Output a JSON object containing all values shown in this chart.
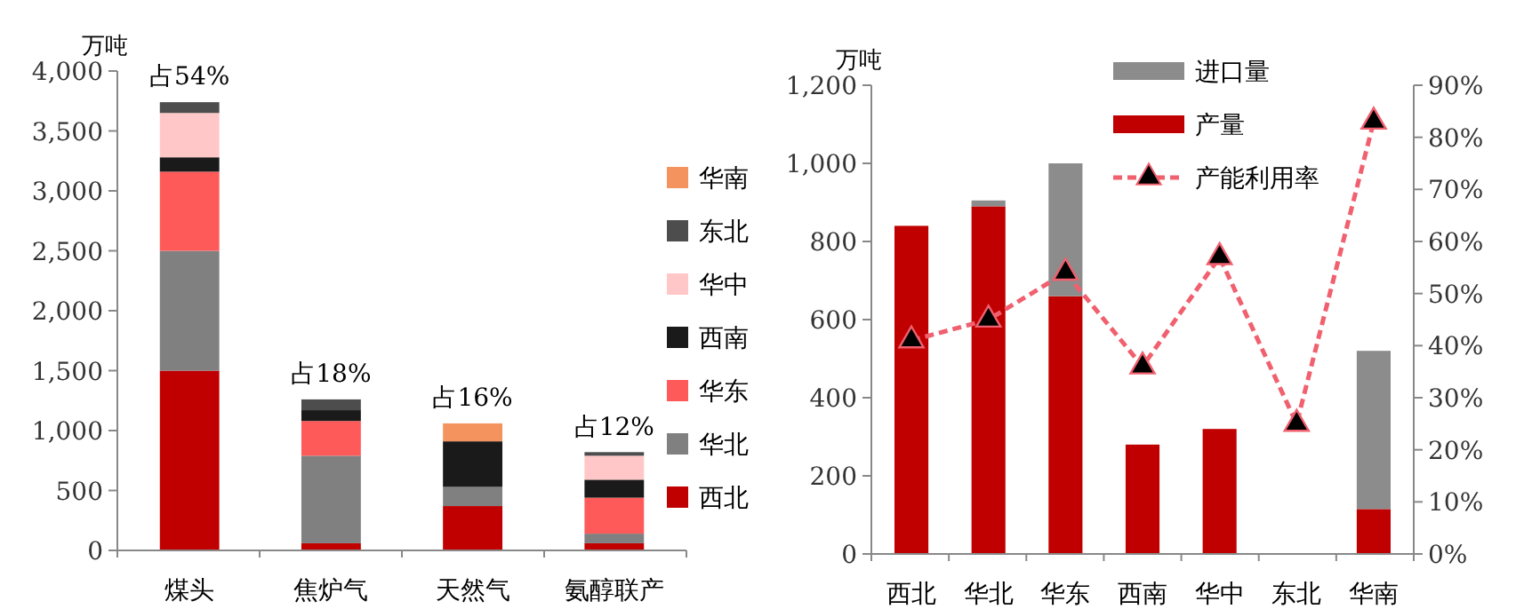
{
  "chart_data": [
    {
      "type": "bar",
      "stacked": true,
      "ylabel": "万吨",
      "categories": [
        "煤头",
        "焦炉气",
        "天然气",
        "氨醇联产"
      ],
      "ylim": [
        0,
        4000
      ],
      "yticks": [
        0,
        500,
        {
          "value": 1000,
          "label": "1,000"
        },
        {
          "value": 1500,
          "label": "1,500"
        },
        {
          "value": 2000,
          "label": "2,000"
        },
        {
          "value": 2500,
          "label": "2,500"
        },
        {
          "value": 3000,
          "label": "3,000"
        },
        {
          "value": 3500,
          "label": "3,500"
        },
        {
          "value": 4000,
          "label": "4,000"
        }
      ],
      "legend": "right",
      "series": [
        {
          "name": "西北",
          "color": "#c00000",
          "values": [
            1500,
            60,
            370,
            60
          ]
        },
        {
          "name": "华北",
          "color": "#808080",
          "values": [
            1000,
            730,
            160,
            80
          ]
        },
        {
          "name": "华东",
          "color": "#ff5a5a",
          "values": [
            660,
            290,
            0,
            300
          ]
        },
        {
          "name": "西南",
          "color": "#1a1a1a",
          "values": [
            120,
            90,
            380,
            150
          ]
        },
        {
          "name": "华中",
          "color": "#ffc7c7",
          "values": [
            370,
            0,
            0,
            200
          ]
        },
        {
          "name": "东北",
          "color": "#4d4d4d",
          "values": [
            90,
            90,
            0,
            30
          ]
        },
        {
          "name": "华南",
          "color": "#f4935e",
          "values": [
            0,
            0,
            150,
            0
          ]
        }
      ],
      "annotations": [
        {
          "text": "占54%",
          "x": "煤头",
          "y": 3740
        },
        {
          "text": "占18%",
          "x": "焦炉气",
          "y": 1260
        },
        {
          "text": "占16%",
          "x": "天然气",
          "y": 1060
        },
        {
          "text": "占12%",
          "x": "氨醇联产",
          "y": 815
        }
      ]
    },
    {
      "type": "bar",
      "stacked": true,
      "ylabel": "万吨",
      "categories": [
        "西北",
        "华北",
        "华东",
        "西南",
        "华中",
        "东北",
        "华南"
      ],
      "ylim": [
        0,
        1200
      ],
      "yticks": [
        0,
        200,
        400,
        600,
        800,
        {
          "value": 1000,
          "label": "1,000"
        },
        {
          "value": 1200,
          "label": "1,200"
        }
      ],
      "y2lim": [
        0,
        90
      ],
      "y2ticks": [
        {
          "value": 0,
          "label": "0%"
        },
        {
          "value": 10,
          "label": "10%"
        },
        {
          "value": 20,
          "label": "20%"
        },
        {
          "value": 30,
          "label": "30%"
        },
        {
          "value": 40,
          "label": "40%"
        },
        {
          "value": 50,
          "label": "50%"
        },
        {
          "value": 60,
          "label": "60%"
        },
        {
          "value": 70,
          "label": "70%"
        },
        {
          "value": 80,
          "label": "80%"
        },
        {
          "value": 90,
          "label": "90%"
        }
      ],
      "legend": "top",
      "marker": "triangle",
      "line_style": "dashed",
      "series": [
        {
          "name": "产量",
          "type": "bar",
          "color": "#c00000",
          "values": [
            840,
            890,
            660,
            280,
            320,
            0,
            115
          ]
        },
        {
          "name": "进口量",
          "type": "bar",
          "color": "#8c8c8c",
          "values": [
            0,
            15,
            340,
            0,
            0,
            0,
            405
          ]
        },
        {
          "name": "产能利用率",
          "type": "line",
          "axis": "y2",
          "color": "#f0606e",
          "values": [
            41,
            45,
            54,
            36,
            57,
            25,
            83
          ]
        }
      ]
    }
  ]
}
